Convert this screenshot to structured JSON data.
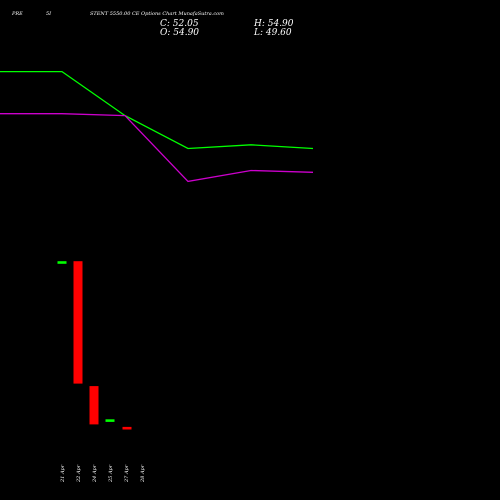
{
  "header": {
    "prefix": "PRE",
    "code": "5I",
    "title": "STENT 5550.00  CE Options  Chart MunafaSutra.com",
    "c_label": "C: 52.05",
    "h_label": "H: 54.90",
    "o_label": "O: 54.90",
    "l_label": "L: 49.60"
  },
  "chart_data": {
    "type": "candlestick",
    "x": [
      "21 Apr",
      "22 Apr",
      "24 Apr",
      "25 Apr",
      "27 Apr",
      "28 Apr"
    ],
    "grid": false,
    "series": [
      {
        "color": "#00ff00",
        "values": [
          0.92,
          0.92,
          0.68,
          0.5,
          0.52,
          0.5
        ]
      },
      {
        "color": "#cc00cc",
        "values": [
          0.69,
          0.69,
          0.68,
          0.32,
          0.38,
          0.37
        ]
      }
    ],
    "candles": [
      {
        "x": "21 Apr",
        "color": "#00ff00",
        "open": 0.75,
        "close": 0.76,
        "high": 0.76,
        "low": 0.75
      },
      {
        "x": "22 Apr",
        "color": "#ff0000",
        "open": 0.76,
        "close": 0.28,
        "high": 0.76,
        "low": 0.28
      },
      {
        "x": "24 Apr",
        "color": "#ff0000",
        "open": 0.27,
        "close": 0.12,
        "high": 0.27,
        "low": 0.12
      },
      {
        "x": "25 Apr",
        "color": "#00ff00",
        "open": 0.13,
        "close": 0.14,
        "high": 0.14,
        "low": 0.13
      },
      {
        "x": "28 Apr",
        "color": "#ff0000",
        "open": 0.11,
        "close": 0.1,
        "high": 0.11,
        "low": 0.1
      }
    ]
  }
}
